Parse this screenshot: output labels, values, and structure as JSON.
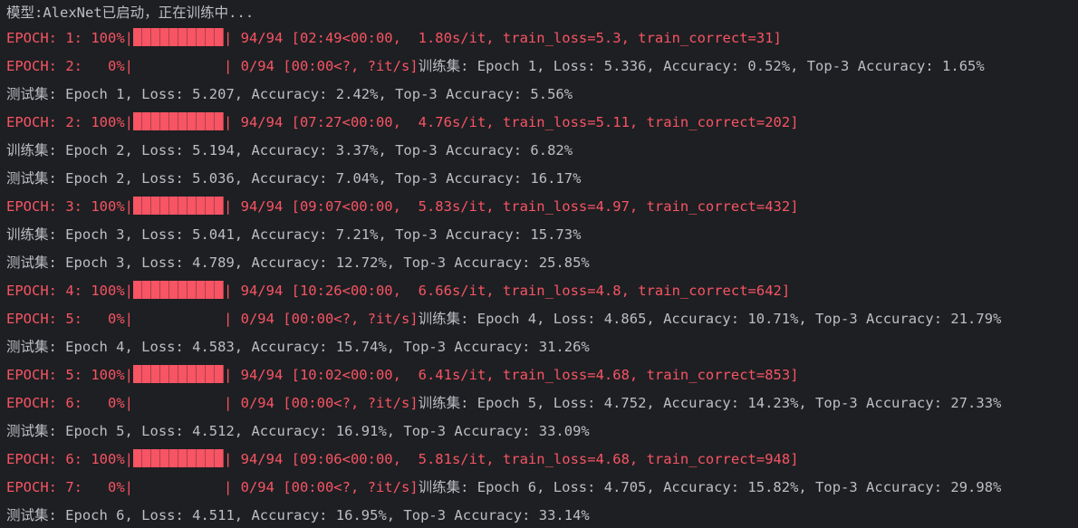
{
  "console": {
    "status": "模型:AlexNet已启动，正在训练中...",
    "lines": [
      {
        "kind": "progress",
        "prefix": "EPOCH: 1: 100%|",
        "suffix": "| 94/94 [02:49<00:00,  1.80s/it, train_loss=5.3, train_correct=31]",
        "progress": 1.0
      },
      {
        "kind": "progress_msg",
        "prefix": "EPOCH: 2:   0%|",
        "suffix": "| 0/94 [00:00<?, ?it/s]",
        "message": "训练集: Epoch 1, Loss: 5.336, Accuracy: 0.52%, Top-3 Accuracy: 1.65%",
        "progress": 0.0
      },
      {
        "kind": "msg",
        "message": "测试集: Epoch 1, Loss: 5.207, Accuracy: 2.42%, Top-3 Accuracy: 5.56%"
      },
      {
        "kind": "progress",
        "prefix": "EPOCH: 2: 100%|",
        "suffix": "| 94/94 [07:27<00:00,  4.76s/it, train_loss=5.11, train_correct=202]",
        "progress": 1.0
      },
      {
        "kind": "msg",
        "message": "训练集: Epoch 2, Loss: 5.194, Accuracy: 3.37%, Top-3 Accuracy: 6.82%"
      },
      {
        "kind": "msg",
        "message": "测试集: Epoch 2, Loss: 5.036, Accuracy: 7.04%, Top-3 Accuracy: 16.17%"
      },
      {
        "kind": "progress",
        "prefix": "EPOCH: 3: 100%|",
        "suffix": "| 94/94 [09:07<00:00,  5.83s/it, train_loss=4.97, train_correct=432]",
        "progress": 1.0
      },
      {
        "kind": "msg",
        "message": "训练集: Epoch 3, Loss: 5.041, Accuracy: 7.21%, Top-3 Accuracy: 15.73%"
      },
      {
        "kind": "msg",
        "message": "测试集: Epoch 3, Loss: 4.789, Accuracy: 12.72%, Top-3 Accuracy: 25.85%"
      },
      {
        "kind": "progress",
        "prefix": "EPOCH: 4: 100%|",
        "suffix": "| 94/94 [10:26<00:00,  6.66s/it, train_loss=4.8, train_correct=642]",
        "progress": 1.0
      },
      {
        "kind": "progress_msg",
        "prefix": "EPOCH: 5:   0%|",
        "suffix": "| 0/94 [00:00<?, ?it/s]",
        "message": "训练集: Epoch 4, Loss: 4.865, Accuracy: 10.71%, Top-3 Accuracy: 21.79%",
        "progress": 0.0
      },
      {
        "kind": "msg",
        "message": "测试集: Epoch 4, Loss: 4.583, Accuracy: 15.74%, Top-3 Accuracy: 31.26%"
      },
      {
        "kind": "progress",
        "prefix": "EPOCH: 5: 100%|",
        "suffix": "| 94/94 [10:02<00:00,  6.41s/it, train_loss=4.68, train_correct=853]",
        "progress": 1.0
      },
      {
        "kind": "progress_msg",
        "prefix": "EPOCH: 6:   0%|",
        "suffix": "| 0/94 [00:00<?, ?it/s]",
        "message": "训练集: Epoch 5, Loss: 4.752, Accuracy: 14.23%, Top-3 Accuracy: 27.33%",
        "progress": 0.0
      },
      {
        "kind": "msg",
        "message": "测试集: Epoch 5, Loss: 4.512, Accuracy: 16.91%, Top-3 Accuracy: 33.09%"
      },
      {
        "kind": "progress",
        "prefix": "EPOCH: 6: 100%|",
        "suffix": "| 94/94 [09:06<00:00,  5.81s/it, train_loss=4.68, train_correct=948]",
        "progress": 1.0
      },
      {
        "kind": "progress_msg",
        "prefix": "EPOCH: 7:   0%|",
        "suffix": "| 0/94 [00:00<?, ?it/s]",
        "message": "训练集: Epoch 6, Loss: 4.705, Accuracy: 15.82%, Top-3 Accuracy: 29.98%",
        "progress": 0.0
      },
      {
        "kind": "msg",
        "message": "测试集: Epoch 6, Loss: 4.511, Accuracy: 16.95%, Top-3 Accuracy: 33.14%"
      }
    ]
  },
  "colors": {
    "background": "#1e1f22",
    "text": "#bcbec4",
    "progress": "#f75464"
  }
}
